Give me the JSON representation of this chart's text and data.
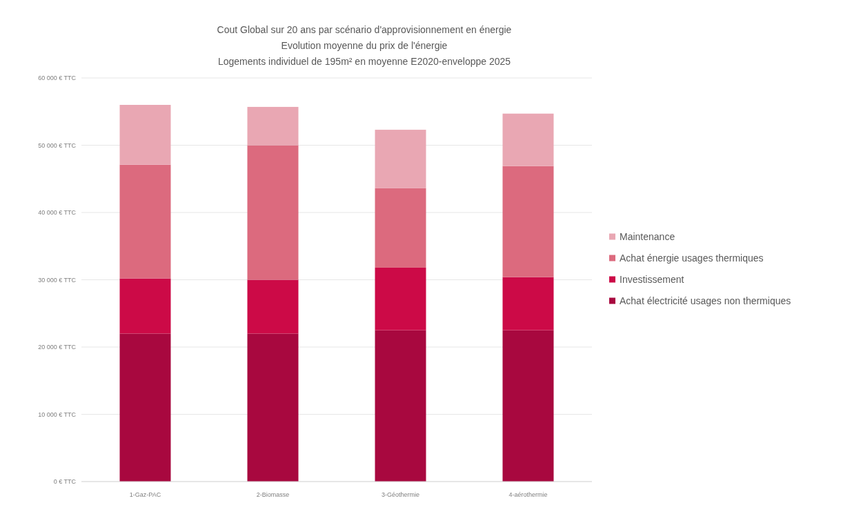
{
  "chart_data": {
    "type": "bar",
    "stacked": true,
    "title": "Cout Global sur 20 ans par scénario d'approvisionnement en énergie",
    "subtitle": "Evolution moyenne du prix de l'énergie\nLogements individuel de 195m² en moyenne E2020-enveloppe 2025",
    "categories": [
      "1-Gaz-PAC",
      "2-Biomasse",
      "3-Géothermie",
      "4-aérothermie"
    ],
    "series": [
      {
        "name": "Achat électricité usages non thermiques",
        "color": "#a8083f",
        "values": [
          22000,
          22000,
          22500,
          22500
        ]
      },
      {
        "name": "Investissement",
        "color": "#cc0a47",
        "values": [
          8200,
          8000,
          9300,
          7900
        ]
      },
      {
        "name": "Achat énergie usages thermiques",
        "color": "#dc6a7e",
        "values": [
          16900,
          20000,
          11800,
          16500
        ]
      },
      {
        "name": "Maintenance",
        "color": "#e9a7b3",
        "values": [
          8900,
          5700,
          8700,
          7800
        ]
      }
    ],
    "ylim": [
      0,
      60000
    ],
    "yticks": [
      {
        "value": 0,
        "label": "0 € TTC"
      },
      {
        "value": 10000,
        "label": "10 000 € TTC"
      },
      {
        "value": 20000,
        "label": "20 000 € TTC"
      },
      {
        "value": 30000,
        "label": "30 000 € TTC"
      },
      {
        "value": 40000,
        "label": "40 000 € TTC"
      },
      {
        "value": 50000,
        "label": "50 000 € TTC"
      },
      {
        "value": 60000,
        "label": "60 000 € TTC"
      }
    ],
    "grid": "y",
    "legend": "right"
  }
}
